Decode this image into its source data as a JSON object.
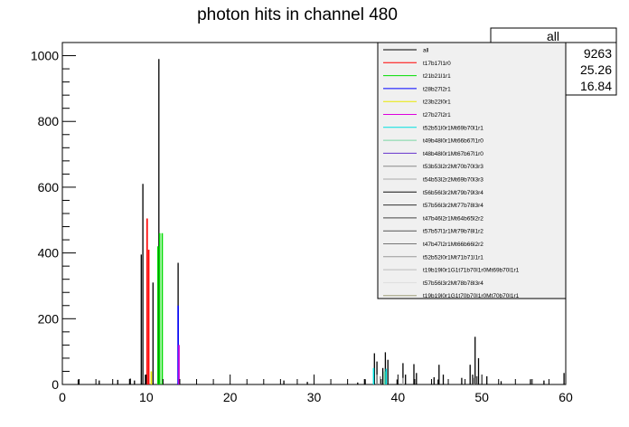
{
  "chart_data": {
    "type": "histogram",
    "title": "photon hits in channel 480",
    "xlabel": "",
    "ylabel": "",
    "xlim": [
      0,
      60
    ],
    "ylim": [
      0,
      1040
    ],
    "x_ticks": [
      0,
      10,
      20,
      30,
      40,
      50,
      60
    ],
    "y_ticks": [
      0,
      200,
      400,
      600,
      800,
      1000
    ],
    "stats_box": {
      "title": "all",
      "values": [
        "9263",
        "25.26",
        "16.84"
      ]
    },
    "legend_placement": "top-right",
    "series": [
      {
        "name": "all",
        "color": "#000000",
        "points": [
          [
            1.9,
            15
          ],
          [
            4.4,
            12
          ],
          [
            6.6,
            14
          ],
          [
            8.1,
            18
          ],
          [
            8.6,
            12
          ],
          [
            9.4,
            395
          ],
          [
            9.6,
            610
          ],
          [
            9.9,
            30
          ],
          [
            10.8,
            310
          ],
          [
            11.5,
            990
          ],
          [
            11.6,
            380
          ],
          [
            13.8,
            370
          ],
          [
            13.9,
            120
          ],
          [
            26.4,
            12
          ],
          [
            29.2,
            8
          ],
          [
            35.2,
            6
          ],
          [
            36.1,
            16
          ],
          [
            37.2,
            95
          ],
          [
            37.5,
            70
          ],
          [
            38.2,
            50
          ],
          [
            38.5,
            98
          ],
          [
            38.8,
            75
          ],
          [
            39.9,
            15
          ],
          [
            40.6,
            65
          ],
          [
            40.9,
            30
          ],
          [
            41.9,
            62
          ],
          [
            42.2,
            35
          ],
          [
            44.3,
            22
          ],
          [
            44.9,
            60
          ],
          [
            45.4,
            30
          ],
          [
            47.6,
            20
          ],
          [
            48.6,
            60
          ],
          [
            49.2,
            145
          ],
          [
            49.6,
            80
          ],
          [
            50.6,
            25
          ],
          [
            52.3,
            10
          ],
          [
            55.8,
            16
          ],
          [
            57.4,
            12
          ],
          [
            59.8,
            35
          ]
        ]
      },
      {
        "name": "t17b17l1r0",
        "color": "#ff0000",
        "points": [
          [
            10.1,
            505
          ],
          [
            10.3,
            410
          ]
        ]
      },
      {
        "name": "t21b21l1r1",
        "color": "#00dd00",
        "points": [
          [
            11.4,
            420
          ],
          [
            11.6,
            460
          ],
          [
            11.9,
            460
          ]
        ]
      },
      {
        "name": "t28b27l2r1",
        "color": "#0000ff",
        "points": [
          [
            13.8,
            240
          ]
        ]
      },
      {
        "name": "t23b22l0r1",
        "color": "#e8e800",
        "points": [
          [
            10.6,
            40
          ]
        ]
      },
      {
        "name": "t27b27l2r1",
        "color": "#dd00dd",
        "points": [
          [
            13.9,
            120
          ]
        ]
      },
      {
        "name": "t52b51l0r1Mt69b70l1r1",
        "color": "#00e0e0",
        "points": [
          [
            37.1,
            50
          ],
          [
            38.6,
            48
          ]
        ]
      },
      {
        "name": "t49b48l0r1Mt66b67l1r0",
        "color": "#7ad7a4",
        "points": [
          [
            38.4,
            40
          ]
        ]
      },
      {
        "name": "t48b48l0r1Mt67b67l1r0",
        "color": "#6633cc",
        "points": []
      },
      {
        "name": "t53b53l2r2Mt70b70l3r3",
        "color": "#888888",
        "points": [
          [
            37.5,
            30
          ],
          [
            49.1,
            20
          ]
        ]
      },
      {
        "name": "t54b53l2r2Mt69b70l3r3",
        "color": "#aaaaaa",
        "points": [
          [
            40.6,
            20
          ]
        ]
      },
      {
        "name": "t56b56l3r2Mt79b79l3r4",
        "color": "#111111",
        "points": [
          [
            44.8,
            15
          ]
        ]
      },
      {
        "name": "t57b56l3r2Mt77b78l3r4",
        "color": "#333333",
        "points": [
          [
            48.9,
            30
          ]
        ]
      },
      {
        "name": "t47b46l2r1Mt64b65l2r2",
        "color": "#444444",
        "points": []
      },
      {
        "name": "t57b57l1r1Mt79b78l1r2",
        "color": "#555555",
        "points": [
          [
            49.4,
            25
          ]
        ]
      },
      {
        "name": "t47b47l2r1Mt66b66l2r2",
        "color": "#777777",
        "points": []
      },
      {
        "name": "t52b52l0r1Mt71b71l1r1",
        "color": "#999999",
        "points": [
          [
            37.9,
            25
          ]
        ]
      },
      {
        "name": "t19b19l0r1G1t71b70l1r0Mt69b70l1r1",
        "color": "#bbbbbb",
        "points": []
      },
      {
        "name": "t57b56l3r2Mt78b78l3r4",
        "color": "#dddddd",
        "points": []
      },
      {
        "name": "t19b19l0r1G1t70b70l1r0Mt70b70l1r1",
        "color": "#9e9e7a",
        "points": []
      }
    ]
  }
}
